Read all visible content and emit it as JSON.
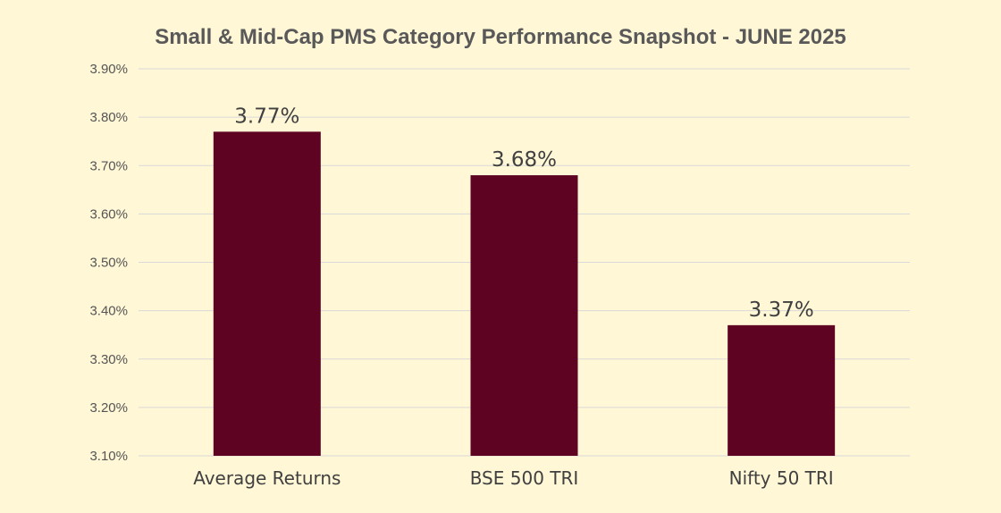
{
  "chart_data": {
    "type": "bar",
    "title": "Small & Mid-Cap PMS Category Performance Snapshot - JUNE 2025",
    "xlabel": "",
    "ylabel": "",
    "categories": [
      "Average Returns",
      "BSE 500 TRI",
      "Nifty 50 TRI"
    ],
    "values": [
      3.77,
      3.68,
      3.37
    ],
    "data_labels": [
      "3.77%",
      "3.68%",
      "3.37%"
    ],
    "ylim": [
      3.1,
      3.9
    ],
    "yticks": [
      "3.10%",
      "3.20%",
      "3.30%",
      "3.40%",
      "3.50%",
      "3.60%",
      "3.70%",
      "3.80%",
      "3.90%"
    ],
    "grid": true,
    "legend": "none",
    "colors": {
      "bar": "#5e0322",
      "background": "#fff7d6",
      "grid": "#d9d9d9"
    }
  }
}
